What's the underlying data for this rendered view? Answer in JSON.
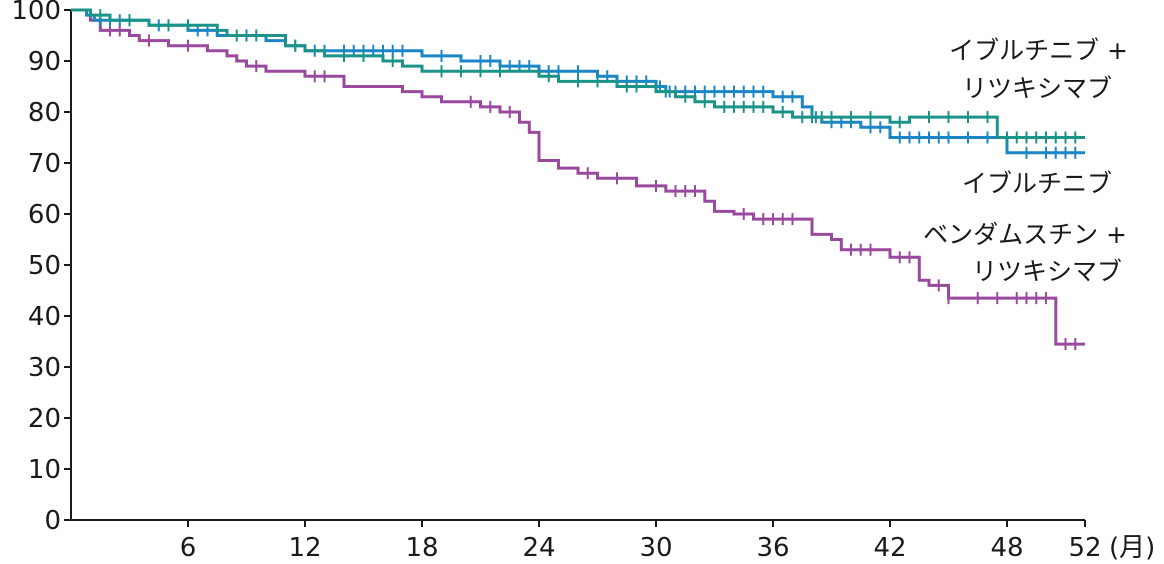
{
  "chart_data": {
    "type": "line",
    "title": "",
    "xlabel": "",
    "ylabel": "",
    "x_unit": "(月)",
    "xlim": [
      0,
      52
    ],
    "ylim": [
      0,
      100
    ],
    "x_ticks": [
      6,
      12,
      18,
      24,
      30,
      36,
      42,
      48,
      52
    ],
    "y_ticks": [
      0,
      10,
      20,
      30,
      40,
      50,
      60,
      70,
      80,
      90,
      100
    ],
    "grid": false,
    "series": [
      {
        "name": "イブルチニブ",
        "color": "#1a86c8",
        "points": [
          [
            0,
            100
          ],
          [
            0.8,
            100
          ],
          [
            0.8,
            99
          ],
          [
            1.2,
            99
          ],
          [
            1.2,
            98
          ],
          [
            4,
            98
          ],
          [
            4,
            97
          ],
          [
            6,
            97
          ],
          [
            6,
            96
          ],
          [
            7.5,
            96
          ],
          [
            7.5,
            95
          ],
          [
            10,
            95
          ],
          [
            10,
            94
          ],
          [
            11,
            94
          ],
          [
            11,
            93
          ],
          [
            12,
            93
          ],
          [
            12,
            92
          ],
          [
            18,
            92
          ],
          [
            18,
            91
          ],
          [
            20,
            91
          ],
          [
            20,
            90
          ],
          [
            22,
            90
          ],
          [
            22,
            89
          ],
          [
            24,
            89
          ],
          [
            24,
            88
          ],
          [
            27,
            88
          ],
          [
            27,
            87
          ],
          [
            28,
            87
          ],
          [
            28,
            86
          ],
          [
            30,
            86
          ],
          [
            30,
            85
          ],
          [
            30.5,
            85
          ],
          [
            30.5,
            84
          ],
          [
            36,
            84
          ],
          [
            36,
            83
          ],
          [
            37.5,
            83
          ],
          [
            37.5,
            81
          ],
          [
            38,
            81
          ],
          [
            38,
            79
          ],
          [
            38.5,
            79
          ],
          [
            38.5,
            78
          ],
          [
            40.5,
            78
          ],
          [
            40.5,
            77
          ],
          [
            42,
            77
          ],
          [
            42,
            75
          ],
          [
            48,
            75
          ],
          [
            48,
            72
          ],
          [
            52,
            72
          ]
        ],
        "censored_x": [
          1.5,
          2,
          2.5,
          3,
          4.5,
          5,
          6.5,
          7,
          9,
          11.5,
          12.5,
          13,
          14,
          14.5,
          15,
          15.5,
          16,
          16.5,
          17,
          19,
          21,
          21.5,
          22.5,
          23,
          23.5,
          24.5,
          25,
          26,
          27.5,
          28.5,
          29,
          29.5,
          30.2,
          30.7,
          31,
          31.5,
          32,
          32.5,
          33,
          33.5,
          34,
          34.5,
          35,
          35.5,
          36.5,
          37,
          38.2,
          39,
          39.5,
          40,
          41,
          41.5,
          42.5,
          43,
          43.5,
          44,
          44.5,
          45,
          46,
          47,
          49,
          50,
          50.5,
          51,
          51.5
        ]
      },
      {
        "name": "イブルチニブ + リツキシマブ",
        "color": "#1a9488",
        "points": [
          [
            0,
            100
          ],
          [
            1,
            100
          ],
          [
            1,
            99
          ],
          [
            2,
            99
          ],
          [
            2,
            98
          ],
          [
            4,
            98
          ],
          [
            4,
            97
          ],
          [
            7.5,
            97
          ],
          [
            7.5,
            96
          ],
          [
            8,
            96
          ],
          [
            8,
            95
          ],
          [
            11,
            95
          ],
          [
            11,
            93
          ],
          [
            12,
            93
          ],
          [
            12,
            92
          ],
          [
            13,
            92
          ],
          [
            13,
            91
          ],
          [
            16,
            91
          ],
          [
            16,
            90
          ],
          [
            17,
            90
          ],
          [
            17,
            89
          ],
          [
            18,
            89
          ],
          [
            18,
            88
          ],
          [
            24,
            88
          ],
          [
            24,
            87
          ],
          [
            25,
            87
          ],
          [
            25,
            86
          ],
          [
            28,
            86
          ],
          [
            28,
            85
          ],
          [
            30,
            85
          ],
          [
            30,
            84
          ],
          [
            31,
            84
          ],
          [
            31,
            83
          ],
          [
            32,
            83
          ],
          [
            32,
            82
          ],
          [
            33,
            82
          ],
          [
            33,
            81
          ],
          [
            36,
            81
          ],
          [
            36,
            80
          ],
          [
            37,
            80
          ],
          [
            37,
            79
          ],
          [
            42,
            79
          ],
          [
            42,
            78
          ],
          [
            43,
            78
          ],
          [
            43,
            79
          ],
          [
            47.5,
            79
          ],
          [
            47.5,
            75
          ],
          [
            52,
            75
          ]
        ],
        "censored_x": [
          1.5,
          3,
          5,
          6,
          8.5,
          9.5,
          11.5,
          14,
          15,
          16.5,
          19,
          20,
          21,
          22,
          24.5,
          26,
          27,
          28.5,
          29,
          30.5,
          31.5,
          32.5,
          33.5,
          34,
          34.5,
          35,
          35.5,
          36.5,
          37.5,
          38,
          38.5,
          39,
          40,
          41,
          42.5,
          44,
          45,
          46,
          47,
          48,
          48.5,
          49,
          49.5,
          50,
          50.5,
          51,
          51.5
        ]
      },
      {
        "name": "ベンダムスチン + リツキシマブ",
        "color": "#9a4a9e",
        "points": [
          [
            0,
            100
          ],
          [
            1,
            100
          ],
          [
            1,
            98
          ],
          [
            1.5,
            98
          ],
          [
            1.5,
            96
          ],
          [
            3,
            96
          ],
          [
            3,
            95
          ],
          [
            3.5,
            95
          ],
          [
            3.5,
            94
          ],
          [
            5,
            94
          ],
          [
            5,
            93
          ],
          [
            7,
            93
          ],
          [
            7,
            92
          ],
          [
            8,
            92
          ],
          [
            8,
            91
          ],
          [
            8.5,
            91
          ],
          [
            8.5,
            90
          ],
          [
            9,
            90
          ],
          [
            9,
            89
          ],
          [
            10,
            89
          ],
          [
            10,
            88
          ],
          [
            12,
            88
          ],
          [
            12,
            87
          ],
          [
            14,
            87
          ],
          [
            14,
            85
          ],
          [
            17,
            85
          ],
          [
            17,
            84
          ],
          [
            18,
            84
          ],
          [
            18,
            83
          ],
          [
            19,
            83
          ],
          [
            19,
            82
          ],
          [
            21,
            82
          ],
          [
            21,
            81
          ],
          [
            22,
            81
          ],
          [
            22,
            80
          ],
          [
            23,
            80
          ],
          [
            23,
            78
          ],
          [
            23.5,
            78
          ],
          [
            23.5,
            76
          ],
          [
            24,
            76
          ],
          [
            24,
            70.5
          ],
          [
            25,
            70.5
          ],
          [
            25,
            69
          ],
          [
            26,
            69
          ],
          [
            26,
            68
          ],
          [
            27,
            68
          ],
          [
            27,
            67
          ],
          [
            29,
            67
          ],
          [
            29,
            65.5
          ],
          [
            30.5,
            65.5
          ],
          [
            30.5,
            64.5
          ],
          [
            32.5,
            64.5
          ],
          [
            32.5,
            62.5
          ],
          [
            33,
            62.5
          ],
          [
            33,
            60.5
          ],
          [
            34,
            60.5
          ],
          [
            34,
            60
          ],
          [
            35,
            60
          ],
          [
            35,
            59
          ],
          [
            38,
            59
          ],
          [
            38,
            56
          ],
          [
            39,
            56
          ],
          [
            39,
            55
          ],
          [
            39.5,
            55
          ],
          [
            39.5,
            53
          ],
          [
            42,
            53
          ],
          [
            42,
            51.5
          ],
          [
            43.5,
            51.5
          ],
          [
            43.5,
            47
          ],
          [
            44,
            47
          ],
          [
            44,
            46
          ],
          [
            45,
            46
          ],
          [
            45,
            43.5
          ],
          [
            50.5,
            43.5
          ],
          [
            50.5,
            34.5
          ],
          [
            52,
            34.5
          ]
        ],
        "censored_x": [
          2,
          2.5,
          4,
          6,
          9.5,
          12.5,
          13,
          20.5,
          21.5,
          22.5,
          26.5,
          28,
          30,
          31,
          31.5,
          32,
          34.5,
          35.5,
          36,
          36.5,
          37,
          40,
          40.5,
          41,
          42.5,
          43,
          44.5,
          45,
          46.5,
          47.5,
          48.5,
          49,
          49.5,
          50,
          51,
          51.5
        ]
      }
    ]
  }
}
